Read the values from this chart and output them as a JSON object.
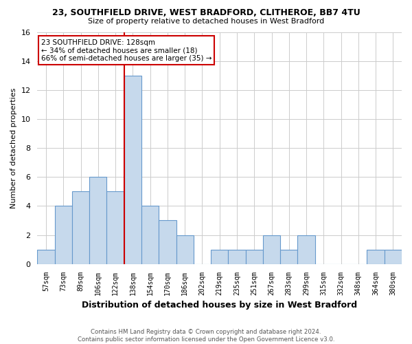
{
  "title1": "23, SOUTHFIELD DRIVE, WEST BRADFORD, CLITHEROE, BB7 4TU",
  "title2": "Size of property relative to detached houses in West Bradford",
  "xlabel": "Distribution of detached houses by size in West Bradford",
  "ylabel": "Number of detached properties",
  "bin_labels": [
    "57sqm",
    "73sqm",
    "89sqm",
    "106sqm",
    "122sqm",
    "138sqm",
    "154sqm",
    "170sqm",
    "186sqm",
    "202sqm",
    "219sqm",
    "235sqm",
    "251sqm",
    "267sqm",
    "283sqm",
    "299sqm",
    "315sqm",
    "332sqm",
    "348sqm",
    "364sqm",
    "380sqm"
  ],
  "bar_heights": [
    1,
    4,
    5,
    6,
    5,
    13,
    4,
    3,
    2,
    0,
    1,
    1,
    1,
    2,
    1,
    2,
    0,
    0,
    0,
    1,
    1
  ],
  "bar_color": "#c6d9ec",
  "bar_edge_color": "#6699cc",
  "highlight_line_color": "#cc0000",
  "annotation_title": "23 SOUTHFIELD DRIVE: 128sqm",
  "annotation_line1": "← 34% of detached houses are smaller (18)",
  "annotation_line2": "66% of semi-detached houses are larger (35) →",
  "annotation_box_color": "#ffffff",
  "annotation_box_edge": "#cc0000",
  "ylim": [
    0,
    16
  ],
  "yticks": [
    0,
    2,
    4,
    6,
    8,
    10,
    12,
    14,
    16
  ],
  "footer1": "Contains HM Land Registry data © Crown copyright and database right 2024.",
  "footer2": "Contains public sector information licensed under the Open Government Licence v3.0.",
  "background_color": "#ffffff",
  "grid_color": "#cccccc"
}
